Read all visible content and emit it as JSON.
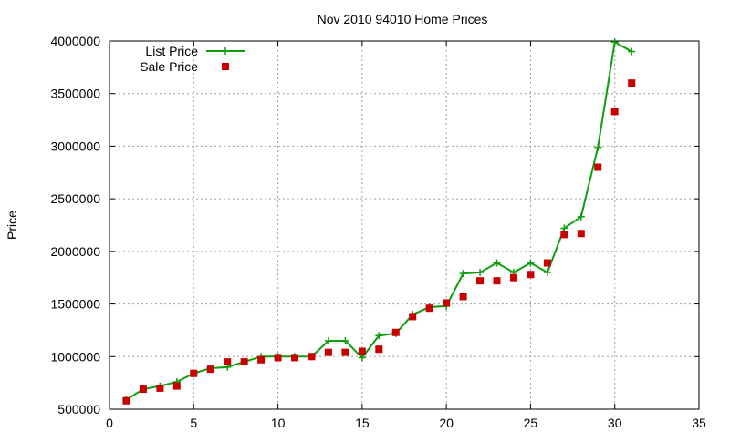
{
  "chart_data": {
    "type": "line",
    "title": "Nov 2010 94010 Home Prices",
    "xlabel": "",
    "ylabel": "Price",
    "xlim": [
      0,
      35
    ],
    "ylim": [
      500000,
      4000000
    ],
    "xticks": [
      0,
      5,
      10,
      15,
      20,
      25,
      30,
      35
    ],
    "yticks": [
      500000,
      1000000,
      1500000,
      2000000,
      2500000,
      3000000,
      3500000,
      4000000
    ],
    "xtick_labels": [
      "0",
      "5",
      "10",
      "15",
      "20",
      "25",
      "30",
      "35"
    ],
    "ytick_labels": [
      "500000",
      "1000000",
      "1500000",
      "2000000",
      "2500000",
      "3000000",
      "3500000",
      "4000000"
    ],
    "grid": true,
    "legend_position": "top-left",
    "series": [
      {
        "name": "List Price",
        "style": "line-with-plus",
        "color": "#0d9d0d",
        "x": [
          1,
          2,
          3,
          4,
          5,
          6,
          7,
          8,
          9,
          10,
          11,
          12,
          13,
          14,
          15,
          16,
          17,
          18,
          19,
          20,
          21,
          22,
          23,
          24,
          25,
          26,
          27,
          28,
          29,
          30,
          31
        ],
        "y": [
          590000,
          690000,
          720000,
          760000,
          840000,
          890000,
          900000,
          950000,
          1000000,
          1000000,
          1000000,
          1000000,
          1150000,
          1150000,
          990000,
          1200000,
          1220000,
          1400000,
          1470000,
          1480000,
          1790000,
          1800000,
          1890000,
          1800000,
          1890000,
          1800000,
          2220000,
          2330000,
          2990000,
          3990000,
          3900000
        ]
      },
      {
        "name": "Sale Price",
        "style": "square-marker",
        "color": "#c80000",
        "x": [
          1,
          2,
          3,
          4,
          5,
          6,
          7,
          8,
          9,
          10,
          11,
          12,
          13,
          14,
          15,
          16,
          17,
          18,
          19,
          20,
          21,
          22,
          23,
          24,
          25,
          26,
          27,
          28,
          29,
          30,
          31
        ],
        "y": [
          580000,
          690000,
          700000,
          720000,
          840000,
          880000,
          950000,
          950000,
          970000,
          990000,
          990000,
          1000000,
          1040000,
          1040000,
          1050000,
          1070000,
          1230000,
          1380000,
          1460000,
          1510000,
          1570000,
          1720000,
          1720000,
          1750000,
          1780000,
          1890000,
          2160000,
          2170000,
          2800000,
          3330000,
          3600000
        ]
      }
    ]
  }
}
